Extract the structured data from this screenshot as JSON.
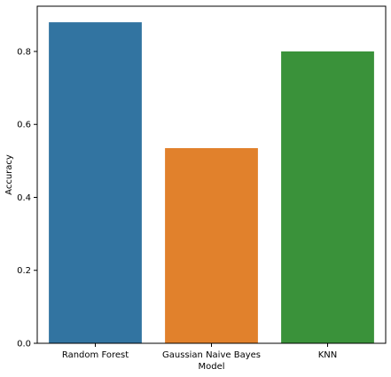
{
  "chart_data": {
    "type": "bar",
    "categories": [
      "Random Forest",
      "Gaussian Naive Bayes",
      "KNN"
    ],
    "values": [
      0.88,
      0.535,
      0.8
    ],
    "xlabel": "Model",
    "ylabel": "Accuracy",
    "ylim": [
      0,
      0.924
    ],
    "yticks": [
      0.0,
      0.2,
      0.4,
      0.6,
      0.8
    ],
    "ytick_labels": [
      "0.0",
      "0.2",
      "0.4",
      "0.6",
      "0.8"
    ],
    "colors": [
      "#3274a1",
      "#e1812c",
      "#3a923a"
    ],
    "grid": false,
    "legend": "none"
  }
}
